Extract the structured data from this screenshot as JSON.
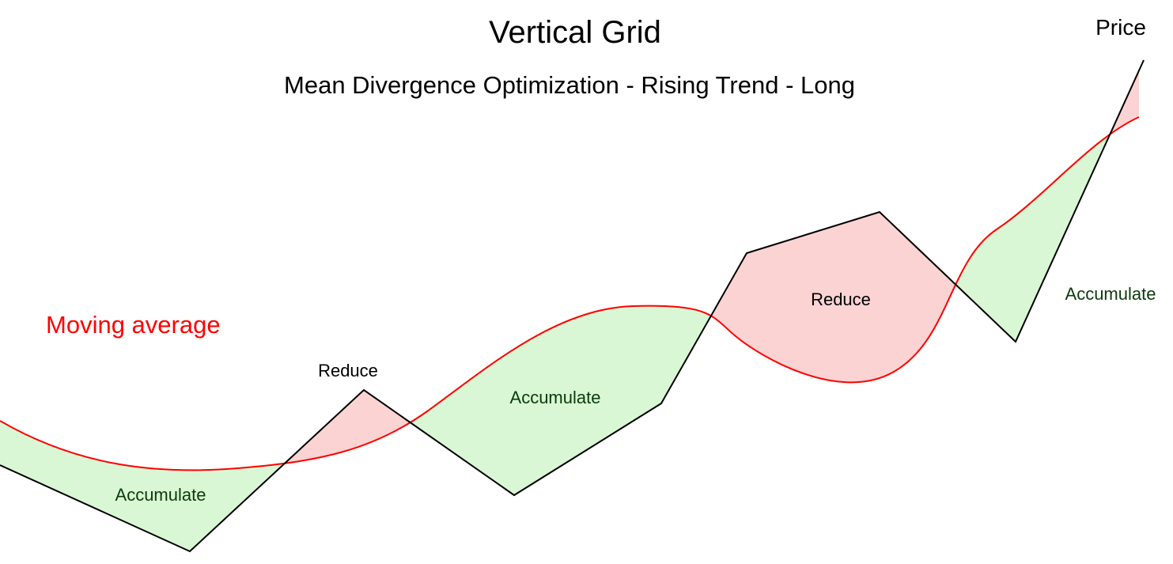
{
  "title": "Vertical Grid",
  "subtitle": "Mean Divergence Optimization - Rising Trend - Long",
  "labels": {
    "price": "Price",
    "moving_average": "Moving average",
    "regions": [
      {
        "text": "Accumulate",
        "kind": "accumulate"
      },
      {
        "text": "Reduce",
        "kind": "reduce"
      },
      {
        "text": "Accumulate",
        "kind": "accumulate"
      },
      {
        "text": "Reduce",
        "kind": "reduce"
      },
      {
        "text": "Accumulate",
        "kind": "accumulate"
      }
    ]
  },
  "colors": {
    "price_line": "#000000",
    "moving_average_line": "#ff0000",
    "moving_average_label": "#ff0000",
    "accumulate_fill": "#d9f7d4",
    "reduce_fill": "#fbd3d3",
    "accumulate_text": "#0b3a0b",
    "reduce_text": "#000000"
  }
}
